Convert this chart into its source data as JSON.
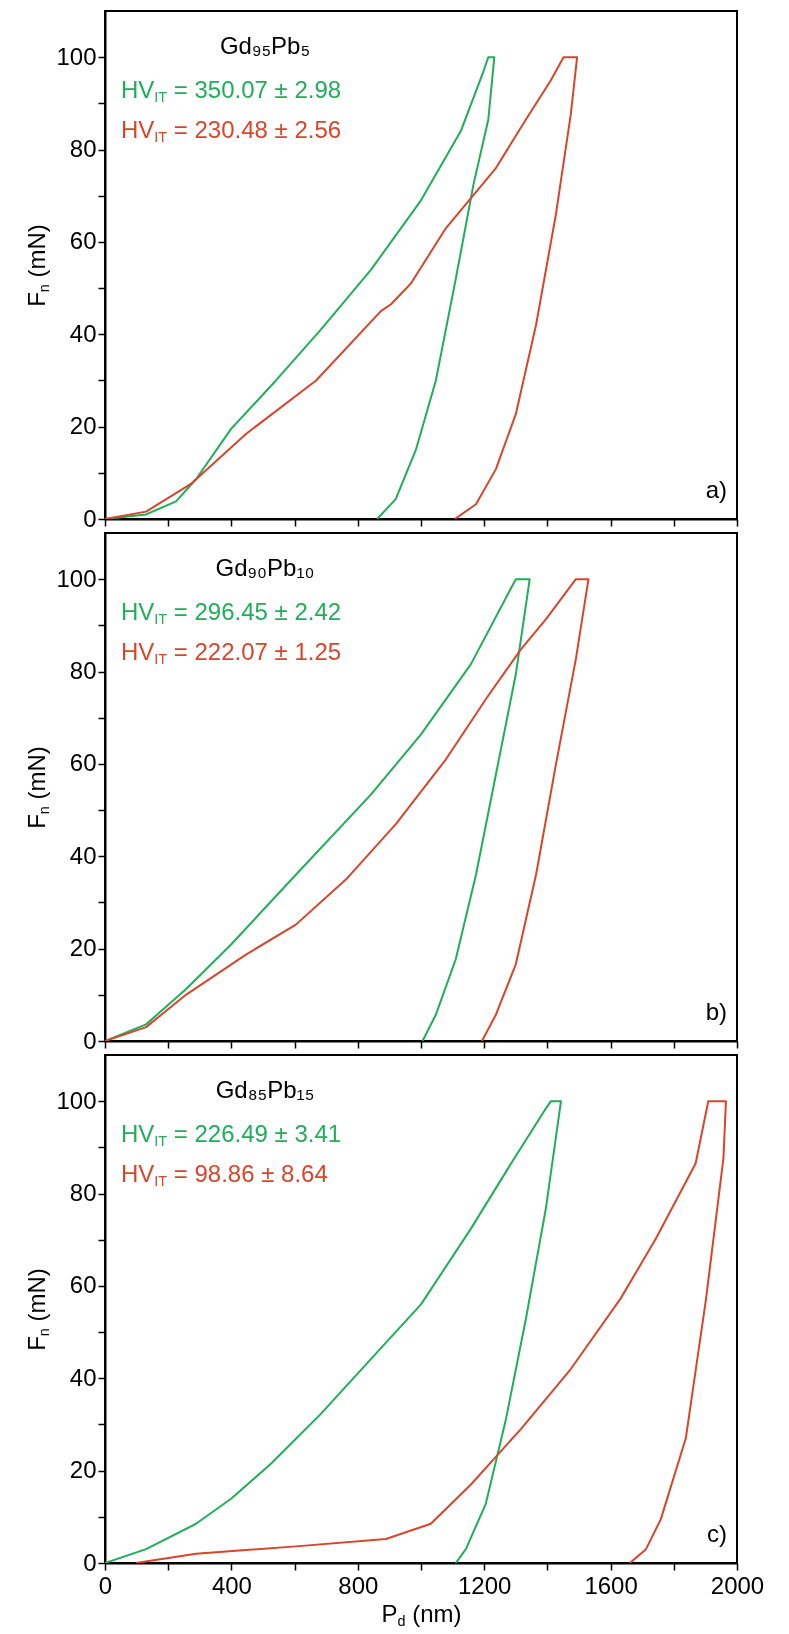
{
  "chart_data": [
    {
      "type": "line",
      "title": "Gd₉₅Pb₅",
      "ylabel": "F$_{n}$ (mN)",
      "xlim": [
        0,
        2000
      ],
      "ylim": [
        0,
        110
      ],
      "tick_labels": "y",
      "xticks": [
        0,
        {
          "value": 200,
          "label": null
        },
        400,
        {
          "value": 600,
          "label": null
        },
        800,
        {
          "value": 1000,
          "label": null
        },
        1200,
        {
          "value": 1400,
          "label": null
        },
        1600,
        {
          "value": 1800,
          "label": null
        },
        2000
      ],
      "yticks": [
        0,
        {
          "value": 10,
          "label": null
        },
        20,
        {
          "value": 30,
          "label": null
        },
        40,
        {
          "value": 50,
          "label": null
        },
        60,
        {
          "value": 70,
          "label": null
        },
        80,
        {
          "value": 90,
          "label": null
        },
        100
      ],
      "annotations": [
        "a)"
      ],
      "series": [
        {
          "name": "HV$_{IT}$ = 350.07 ± 2.98",
          "color": "#1fae5a",
          "x": [
            0,
            130,
            225,
            288,
            399,
            541,
            683,
            842,
            1000,
            1126,
            1198,
            1213,
            1232,
            1213,
            1166,
            1110,
            1047,
            984,
            920,
            861
          ],
          "values": [
            0,
            1,
            3.8,
            8.6,
            19.5,
            30,
            41,
            54,
            69,
            84,
            97,
            100,
            100,
            86.5,
            72.4,
            52,
            30,
            15,
            4.3,
            0
          ]
        },
        {
          "name": "HV$_{IT}$ = 230.48 ± 2.56",
          "color": "#d9452b",
          "x": [
            0,
            130,
            272,
            446,
            668,
            873,
            905,
            968,
            1079,
            1237,
            1332,
            1411,
            1451,
            1494,
            1474,
            1427,
            1364,
            1300,
            1237,
            1174,
            1107
          ],
          "values": [
            0,
            1.6,
            7.6,
            18.4,
            30,
            45,
            46.5,
            51,
            63,
            76,
            86.5,
            95,
            100,
            100,
            87.6,
            66,
            42,
            22.7,
            10.8,
            3.2,
            0
          ]
        }
      ]
    },
    {
      "type": "line",
      "title": "Gd₉₀Pb₁₀",
      "ylabel": "F$_{n}$ (mN)",
      "xlim": [
        0,
        2000
      ],
      "ylim": [
        0,
        110
      ],
      "tick_labels": "y",
      "xticks": [
        0,
        {
          "value": 200,
          "label": null
        },
        400,
        {
          "value": 600,
          "label": null
        },
        800,
        {
          "value": 1000,
          "label": null
        },
        1200,
        {
          "value": 1400,
          "label": null
        },
        1600,
        {
          "value": 1800,
          "label": null
        },
        2000
      ],
      "yticks": [
        0,
        {
          "value": 10,
          "label": null
        },
        20,
        {
          "value": 30,
          "label": null
        },
        40,
        {
          "value": 50,
          "label": null
        },
        60,
        {
          "value": 70,
          "label": null
        },
        80,
        {
          "value": 90,
          "label": null
        },
        100
      ],
      "annotations": [
        "b)"
      ],
      "series": [
        {
          "name": "HV$_{IT}$ = 296.45 ± 2.42",
          "color": "#1fae5a",
          "x": [
            0,
            130,
            256,
            399,
            604,
            842,
            1000,
            1158,
            1300,
            1344,
            1300,
            1237,
            1174,
            1110,
            1047,
            1005
          ],
          "values": [
            0,
            3.6,
            11.2,
            20.9,
            36,
            53.4,
            66.4,
            81.6,
            100,
            100,
            79.4,
            57.7,
            36,
            17.7,
            5.7,
            0
          ]
        },
        {
          "name": "HV$_{IT}$ = 222.07 ± 1.25",
          "color": "#d9452b",
          "x": [
            0,
            130,
            256,
            446,
            604,
            763,
            921,
            1079,
            1205,
            1316,
            1395,
            1490,
            1530,
            1490,
            1427,
            1364,
            1300,
            1237,
            1193
          ],
          "values": [
            0,
            3,
            10,
            18.7,
            25.2,
            35,
            47,
            61,
            74,
            84.8,
            91.3,
            100,
            100,
            82.7,
            59.9,
            36,
            16.6,
            5.7,
            0
          ]
        }
      ]
    },
    {
      "type": "line",
      "title": "Gd₈₅Pb₁₅",
      "xlabel": "P$_{d}$ (nm)",
      "ylabel": "F$_{n}$ (mN)",
      "xlim": [
        0,
        2000
      ],
      "ylim": [
        0,
        110
      ],
      "xticks": [
        0,
        {
          "value": 200,
          "label": null
        },
        400,
        {
          "value": 600,
          "label": null
        },
        800,
        {
          "value": 1000,
          "label": null
        },
        1200,
        {
          "value": 1400,
          "label": null
        },
        1600,
        {
          "value": 1800,
          "label": null
        },
        2000
      ],
      "yticks": [
        0,
        {
          "value": 10,
          "label": null
        },
        20,
        {
          "value": 30,
          "label": null
        },
        40,
        {
          "value": 50,
          "label": null
        },
        60,
        {
          "value": 70,
          "label": null
        },
        80,
        {
          "value": 90,
          "label": null
        },
        100
      ],
      "annotations": [
        "c)"
      ],
      "series": [
        {
          "name": "HV$_{IT}$ = 226.49 ± 3.41",
          "color": "#1fae5a",
          "x": [
            0,
            130,
            288,
            399,
            525,
            683,
            842,
            1000,
            1158,
            1285,
            1395,
            1411,
            1443,
            1395,
            1332,
            1269,
            1205,
            1142,
            1110
          ],
          "values": [
            0,
            3,
            8.5,
            13.9,
            21.5,
            32.3,
            44.2,
            56,
            72.4,
            86.5,
            98.4,
            100,
            100,
            76.7,
            52.9,
            31.2,
            12.8,
            3,
            0
          ]
        },
        {
          "name": "HV$_{IT}$ = 98.86 ± 8.64",
          "color": "#d9452b",
          "x": [
            98,
            288,
            604,
            889,
            1031,
            1158,
            1316,
            1474,
            1632,
            1743,
            1869,
            1909,
            1965,
            1957,
            1902,
            1838,
            1759,
            1712,
            1661
          ],
          "values": [
            0,
            2,
            3.6,
            5.2,
            8.5,
            17,
            29,
            42,
            57.3,
            70.2,
            86.5,
            100,
            100,
            87.6,
            57.2,
            27,
            9.5,
            3,
            0
          ]
        }
      ]
    }
  ]
}
